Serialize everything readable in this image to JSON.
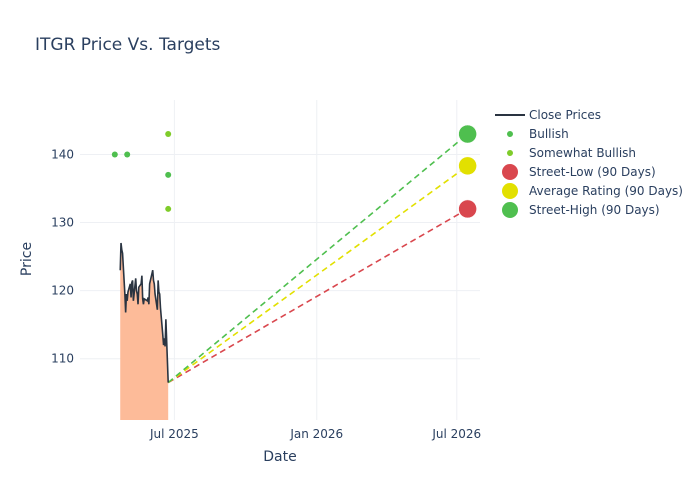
{
  "chart_data": {
    "type": "line",
    "title": "ITGR Price Vs. Targets",
    "xlabel": "Date",
    "ylabel": "Price",
    "xlim": [
      "2025-03-01",
      "2026-07-31"
    ],
    "ylim": [
      101,
      148
    ],
    "x_ticks": [
      {
        "date": "2025-07-01",
        "label": "Jul 2025"
      },
      {
        "date": "2026-01-01",
        "label": "Jan 2026"
      },
      {
        "date": "2026-07-01",
        "label": "Jul 2026"
      }
    ],
    "y_ticks": [
      110,
      120,
      130,
      140
    ],
    "grid": true,
    "legend_position": "right",
    "colors": {
      "close": "#2a3441",
      "fill": "#fdbb99",
      "bullish": "#4fbf4f",
      "somewhat_bullish": "#7fcc2a",
      "street_low": "#d9474e",
      "average": "#e2e000",
      "street_high": "#4fbf4f",
      "grid": "#eef0f4",
      "text": "#2a3f5f"
    },
    "close_prices": [
      [
        "2025-04-22",
        123.0
      ],
      [
        "2025-04-23",
        127.0
      ],
      [
        "2025-04-24",
        126.0
      ],
      [
        "2025-04-25",
        125.5
      ],
      [
        "2025-04-28",
        119.5
      ],
      [
        "2025-04-29",
        116.8
      ],
      [
        "2025-04-30",
        119.5
      ],
      [
        "2025-05-01",
        118.5
      ],
      [
        "2025-05-02",
        119.8
      ],
      [
        "2025-05-05",
        121.0
      ],
      [
        "2025-05-06",
        119.0
      ],
      [
        "2025-05-07",
        121.2
      ],
      [
        "2025-05-08",
        121.5
      ],
      [
        "2025-05-09",
        118.5
      ],
      [
        "2025-05-12",
        121.8
      ],
      [
        "2025-05-13",
        120.0
      ],
      [
        "2025-05-14",
        119.5
      ],
      [
        "2025-05-15",
        118.0
      ],
      [
        "2025-05-16",
        120.5
      ],
      [
        "2025-05-19",
        121.0
      ],
      [
        "2025-05-20",
        122.2
      ],
      [
        "2025-05-21",
        118.8
      ],
      [
        "2025-05-22",
        118.0
      ],
      [
        "2025-05-23",
        118.8
      ],
      [
        "2025-05-27",
        118.5
      ],
      [
        "2025-05-28",
        119.0
      ],
      [
        "2025-05-29",
        118.0
      ],
      [
        "2025-05-30",
        121.0
      ],
      [
        "2025-06-02",
        122.5
      ],
      [
        "2025-06-03",
        123.0
      ],
      [
        "2025-06-04",
        121.5
      ],
      [
        "2025-06-05",
        121.0
      ],
      [
        "2025-06-06",
        119.5
      ],
      [
        "2025-06-09",
        117.2
      ],
      [
        "2025-06-10",
        121.5
      ],
      [
        "2025-06-11",
        119.8
      ],
      [
        "2025-06-12",
        119.5
      ],
      [
        "2025-06-13",
        117.5
      ],
      [
        "2025-06-16",
        113.5
      ],
      [
        "2025-06-17",
        112.0
      ],
      [
        "2025-06-18",
        113.0
      ],
      [
        "2025-06-19",
        111.8
      ],
      [
        "2025-06-20",
        115.8
      ],
      [
        "2025-06-23",
        106.5
      ]
    ],
    "bullish": [
      [
        "2025-04-15",
        140
      ],
      [
        "2025-05-01",
        140
      ],
      [
        "2025-06-23",
        137
      ]
    ],
    "somewhat_bullish": [
      [
        "2025-06-23",
        143
      ],
      [
        "2025-06-23",
        132
      ]
    ],
    "start_point": [
      "2025-06-23",
      106.5
    ],
    "target_date": "2026-07-15",
    "street_low": 132,
    "average_rating": 138.33,
    "street_high": 143,
    "legend": [
      "Close Prices",
      "Bullish",
      "Somewhat Bullish",
      "Street-Low (90 Days)",
      "Average Rating (90 Days)",
      "Street-High (90 Days)"
    ]
  }
}
